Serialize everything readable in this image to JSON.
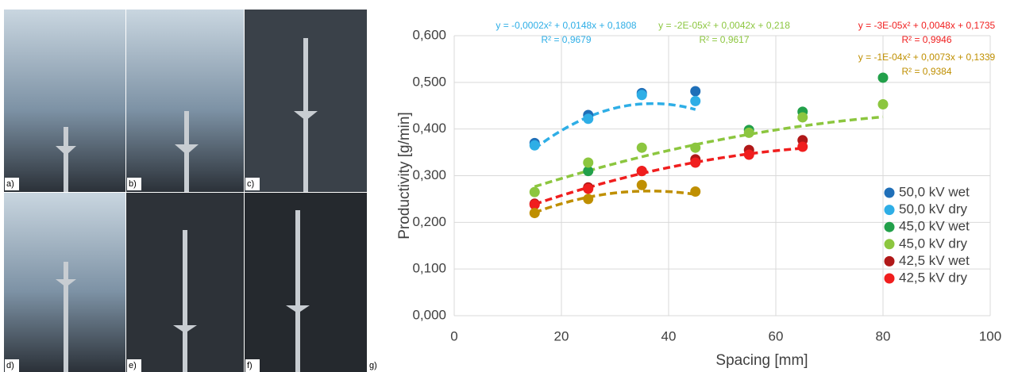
{
  "panels": {
    "labels": [
      "a)",
      "b)",
      "c)",
      "d)",
      "e)",
      "f)"
    ],
    "chart_label": "g)"
  },
  "chart_data": {
    "type": "scatter",
    "xlabel": "Spacing [mm]",
    "ylabel": "Productivity [g/min]",
    "xlim": [
      0,
      100
    ],
    "xticks": [
      0,
      20,
      40,
      60,
      80,
      100
    ],
    "ylim": [
      0,
      0.6
    ],
    "yticks": [
      {
        "value": 0,
        "label": "0,000"
      },
      {
        "value": 0.1,
        "label": "0,100"
      },
      {
        "value": 0.2,
        "label": "0,200"
      },
      {
        "value": 0.3,
        "label": "0,300"
      },
      {
        "value": 0.4,
        "label": "0,400"
      },
      {
        "value": 0.5,
        "label": "0,500"
      },
      {
        "value": 0.6,
        "label": "0,600"
      }
    ],
    "grid": true,
    "legend": "lower right",
    "series": [
      {
        "name": "50,0 kV wet",
        "color": "#1f6fb8",
        "x": [
          15,
          25,
          35,
          45
        ],
        "values": [
          0.37,
          0.43,
          0.477,
          0.481
        ]
      },
      {
        "name": "50,0 kV dry",
        "color": "#2eaee6",
        "x": [
          15,
          25,
          35,
          45
        ],
        "values": [
          0.365,
          0.422,
          0.473,
          0.46
        ]
      },
      {
        "name": "45,0 kV wet",
        "color": "#22a04a",
        "x": [
          25,
          55,
          65,
          80
        ],
        "values": [
          0.31,
          0.398,
          0.437,
          0.51
        ]
      },
      {
        "name": "45,0 kV dry",
        "color": "#8cc63f",
        "x": [
          15,
          25,
          35,
          45,
          55,
          65,
          80
        ],
        "values": [
          0.265,
          0.328,
          0.36,
          0.36,
          0.392,
          0.425,
          0.453
        ]
      },
      {
        "name": "42,5 kV wet",
        "color": "#b01818",
        "x": [
          15,
          25,
          35,
          45,
          55,
          65
        ],
        "values": [
          0.24,
          0.275,
          0.31,
          0.335,
          0.355,
          0.376
        ]
      },
      {
        "name": "42,5 kV dry",
        "color": "#f01e1e",
        "x": [
          15,
          25,
          35,
          45,
          55,
          65
        ],
        "values": [
          0.238,
          0.272,
          0.31,
          0.328,
          0.345,
          0.362
        ]
      },
      {
        "color": "#bf8f00",
        "x": [
          15,
          25,
          35,
          45
        ],
        "values": [
          0.22,
          0.25,
          0.28,
          0.266
        ]
      }
    ],
    "trendlines": [
      {
        "label": "y = -0,0002x² + 0,0148x + 0,1808",
        "r2": "R² = 0,9679",
        "color": "#2eaee6",
        "coef": [
          -0.0002,
          0.0148,
          0.1808
        ],
        "x_range": [
          15,
          45
        ]
      },
      {
        "label": "y = -2E-05x² + 0,0042x + 0,218",
        "r2": "R² = 0,9617",
        "color": "#8cc63f",
        "coef": [
          -2e-05,
          0.0042,
          0.218
        ],
        "x_range": [
          15,
          80
        ]
      },
      {
        "label": "y = -3E-05x² + 0,0048x + 0,1735",
        "r2": "R² = 0,9946",
        "color": "#f01e1e",
        "coef": [
          -3e-05,
          0.0048,
          0.1735
        ],
        "x_range": [
          15,
          65
        ]
      },
      {
        "label": "y = -1E-04x² + 0,0073x + 0,1339",
        "r2": "R² = 0,9384",
        "color": "#bf8f00",
        "coef": [
          -0.0001,
          0.0073,
          0.1339
        ],
        "x_range": [
          15,
          45
        ]
      }
    ]
  }
}
